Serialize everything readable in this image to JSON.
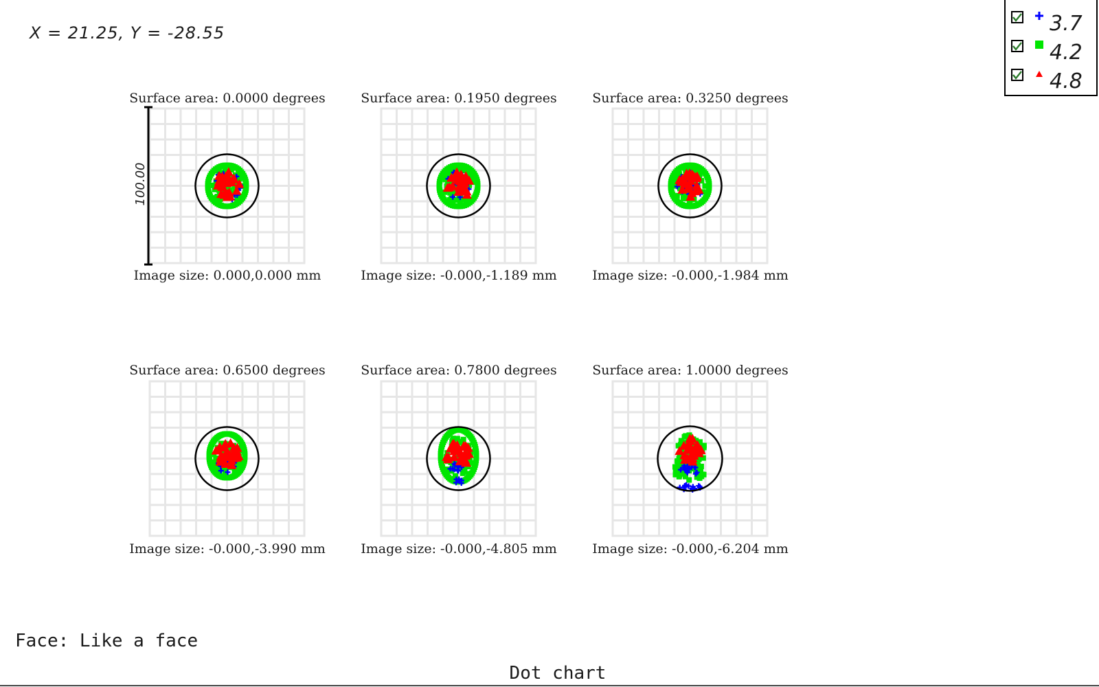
{
  "cursor_readout": "X = 21.25, Y = -28.55",
  "legend": [
    {
      "label": "3.7",
      "marker": "plus",
      "color": "#0000ff",
      "checked": true
    },
    {
      "label": "4.2",
      "marker": "square",
      "color": "#00e600",
      "checked": true
    },
    {
      "label": "4.8",
      "marker": "triangle",
      "color": "#ff0000",
      "checked": true
    }
  ],
  "chart_data": {
    "type": "scatter",
    "title": "Dot chart",
    "scale_bar_label": "100.00",
    "series": [
      {
        "name": "3.7",
        "color": "#0000ff",
        "marker": "plus"
      },
      {
        "name": "4.2",
        "color": "#00e600",
        "marker": "square"
      },
      {
        "name": "4.8",
        "color": "#ff0000",
        "marker": "triangle"
      }
    ],
    "panels": [
      {
        "title": "Surface area: 0.0000 degrees",
        "image_size": "Image size: 0.000,0.000 mm",
        "shape": "round"
      },
      {
        "title": "Surface area: 0.1950 degrees",
        "image_size": "Image size: -0.000,-1.189 mm",
        "shape": "round"
      },
      {
        "title": "Surface area: 0.3250 degrees",
        "image_size": "Image size: -0.000,-1.984 mm",
        "shape": "round-low"
      },
      {
        "title": "Surface area: 0.6500 degrees",
        "image_size": "Image size: -0.000,-3.990 mm",
        "shape": "arch"
      },
      {
        "title": "Surface area: 0.7800 degrees",
        "image_size": "Image size: -0.000,-4.805 mm",
        "shape": "arch-tall"
      },
      {
        "title": "Surface area: 1.0000 degrees",
        "image_size": "Image size: -0.000,-6.204 mm",
        "shape": "tail"
      }
    ]
  },
  "footer": {
    "face_label": "Face: Like a face"
  },
  "colors": {
    "grid": "#e6e6e6",
    "circle": "#000000"
  }
}
